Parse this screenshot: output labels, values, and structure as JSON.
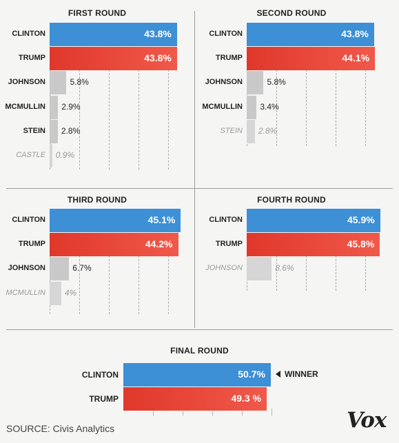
{
  "chart_data": [
    {
      "type": "bar",
      "title": "FIRST ROUND",
      "categories": [
        "CLINTON",
        "TRUMP",
        "JOHNSON",
        "MCMULLIN",
        "STEIN",
        "CASTLE"
      ],
      "values": [
        43.8,
        43.8,
        5.8,
        2.9,
        2.8,
        0.9
      ],
      "labels": [
        "43.8%",
        "43.8%",
        "5.8%",
        "2.9%",
        "2.8%",
        "0.9%"
      ],
      "colors": [
        "#3d8fd6",
        "#e8473a",
        "#c9c9c9",
        "#c9c9c9",
        "#c9c9c9",
        "#d6d6d6"
      ],
      "eliminated": [
        false,
        false,
        false,
        false,
        false,
        true
      ]
    },
    {
      "type": "bar",
      "title": "SECOND ROUND",
      "categories": [
        "CLINTON",
        "TRUMP",
        "JOHNSON",
        "MCMULLIN",
        "STEIN"
      ],
      "values": [
        43.8,
        44.1,
        5.8,
        3.4,
        2.8
      ],
      "labels": [
        "43.8%",
        "44.1%",
        "5.8%",
        "3.4%",
        "2.8%"
      ],
      "colors": [
        "#3d8fd6",
        "#e8473a",
        "#c9c9c9",
        "#c9c9c9",
        "#d6d6d6"
      ],
      "eliminated": [
        false,
        false,
        false,
        false,
        true
      ]
    },
    {
      "type": "bar",
      "title": "THIRD ROUND",
      "categories": [
        "CLINTON",
        "TRUMP",
        "JOHNSON",
        "MCMULLIN"
      ],
      "values": [
        45.1,
        44.2,
        6.7,
        4
      ],
      "labels": [
        "45.1%",
        "44.2%",
        "6.7%",
        "4%"
      ],
      "colors": [
        "#3d8fd6",
        "#e8473a",
        "#c9c9c9",
        "#d6d6d6"
      ],
      "eliminated": [
        false,
        false,
        false,
        true
      ]
    },
    {
      "type": "bar",
      "title": "FOURTH ROUND",
      "categories": [
        "CLINTON",
        "TRUMP",
        "JOHNSON"
      ],
      "values": [
        45.9,
        45.8,
        8.6
      ],
      "labels": [
        "45.9%",
        "45.8%",
        "8.6%"
      ],
      "colors": [
        "#3d8fd6",
        "#e8473a",
        "#d6d6d6"
      ],
      "eliminated": [
        false,
        false,
        true
      ]
    },
    {
      "type": "bar",
      "title": "FINAL ROUND",
      "categories": [
        "CLINTON",
        "TRUMP"
      ],
      "values": [
        50.7,
        49.3
      ],
      "labels": [
        "50.7%",
        "49.3 %"
      ],
      "colors": [
        "#3d8fd6",
        "#e8473a"
      ],
      "eliminated": [
        false,
        false
      ],
      "annotation": "WINNER"
    }
  ],
  "footer": {
    "source": "SOURCE: Civis Analytics",
    "logo": "Vox"
  }
}
